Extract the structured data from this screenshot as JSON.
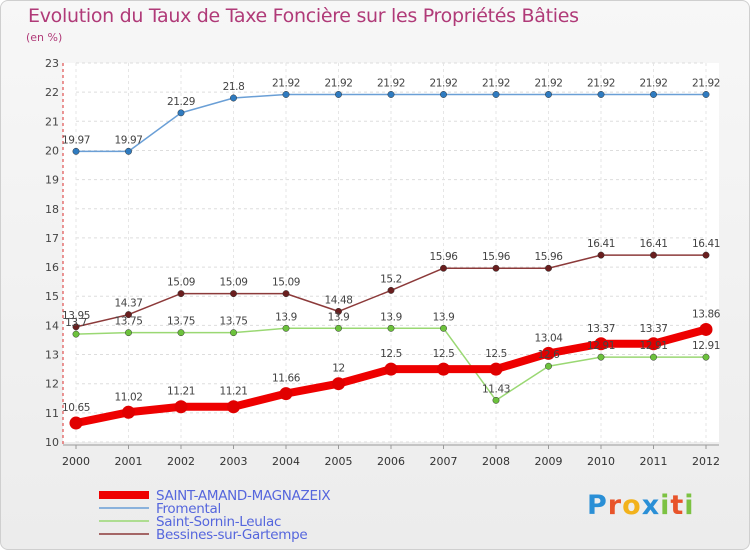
{
  "header": {
    "title": "Evolution du Taux de Taxe Foncière sur les Propriétés Bâties",
    "unit": "(en %)"
  },
  "logo": {
    "text": "Proxiti",
    "colors": [
      "#2a8fd6",
      "#e8542a",
      "#f2b21c",
      "#2a8fd6",
      "#7cc242",
      "#e8542a",
      "#7cc242"
    ]
  },
  "chart_data": {
    "type": "line",
    "title": "Evolution du Taux de Taxe Foncière sur les Propriétés Bâties",
    "ylabel": "(en %)",
    "xlabel": "",
    "categories": [
      "2000",
      "2001",
      "2002",
      "2003",
      "2004",
      "2005",
      "2006",
      "2007",
      "2008",
      "2009",
      "2010",
      "2011",
      "2012"
    ],
    "ylim": [
      10,
      23
    ],
    "yticks": [
      "10",
      "11",
      "12",
      "13",
      "14",
      "15",
      "16",
      "17",
      "18",
      "19",
      "20",
      "21",
      "22",
      "23"
    ],
    "legend_position": "bottom-left",
    "series": [
      {
        "name": "SAINT-AMAND-MAGNAZEIX",
        "color": "#ee0000",
        "marker": "#e00000",
        "width": 8,
        "values": [
          10.65,
          11.02,
          11.21,
          11.21,
          11.66,
          12,
          12.5,
          12.5,
          12.5,
          13.04,
          13.37,
          13.37,
          13.86
        ],
        "labels": [
          "10.65",
          "11.02",
          "11.21",
          "11.21",
          "11.66",
          "12",
          "12.5",
          "12.5",
          "12.5",
          "13.04",
          "13.37",
          "13.37",
          "13.86"
        ]
      },
      {
        "name": "Fromental",
        "color": "#6a9fd6",
        "marker": "#2f7bc0",
        "width": 1.5,
        "values": [
          19.97,
          19.97,
          21.29,
          21.8,
          21.92,
          21.92,
          21.92,
          21.92,
          21.92,
          21.92,
          21.92,
          21.92,
          21.92
        ],
        "labels": [
          "19.97",
          "19.97",
          "21.29",
          "21.8",
          "21.92",
          "21.92",
          "21.92",
          "21.92",
          "21.92",
          "21.92",
          "21.92",
          "21.92",
          "21.92"
        ]
      },
      {
        "name": "Saint-Sornin-Leulac",
        "color": "#9ad873",
        "marker": "#6cc23c",
        "width": 1.5,
        "values": [
          13.7,
          13.75,
          13.75,
          13.75,
          13.9,
          13.9,
          13.9,
          13.9,
          11.43,
          12.6,
          12.91,
          12.91,
          12.91
        ],
        "labels": [
          "13.7",
          "13.75",
          "13.75",
          "13.75",
          "13.9",
          "13.9",
          "13.9",
          "13.9",
          "11.43",
          "12.6",
          "12.91",
          "12.91",
          "12.91"
        ]
      },
      {
        "name": "Bessines-sur-Gartempe",
        "color": "#8c3a3a",
        "marker": "#6a1e1e",
        "width": 1.5,
        "values": [
          13.95,
          14.37,
          15.09,
          15.09,
          15.09,
          14.48,
          15.2,
          15.96,
          15.96,
          15.96,
          16.41,
          16.41,
          16.41
        ],
        "labels": [
          "13.95",
          "14.37",
          "15.09",
          "15.09",
          "15.09",
          "14.48",
          "15.2",
          "15.96",
          "15.96",
          "15.96",
          "16.41",
          "16.41",
          "16.41"
        ]
      }
    ]
  }
}
